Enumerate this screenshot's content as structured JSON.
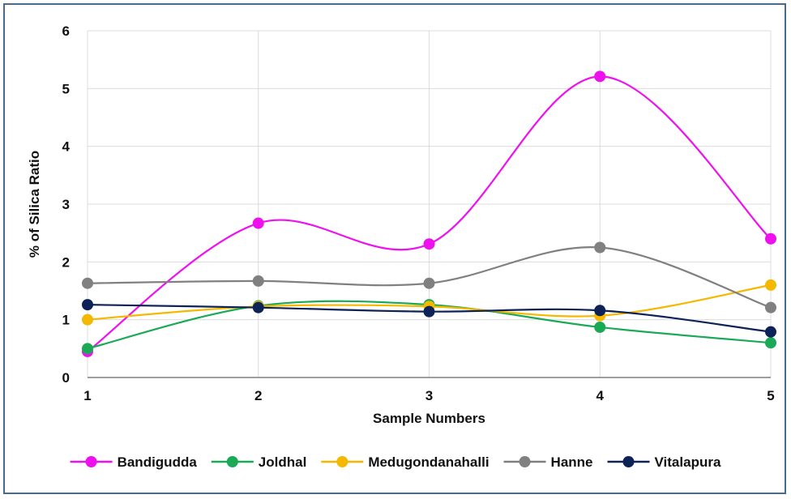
{
  "chart_data": {
    "type": "line",
    "title": "",
    "xlabel": "Sample Numbers",
    "ylabel": "% of Silica Ratio",
    "x": [
      1,
      2,
      3,
      4,
      5
    ],
    "xlim": [
      1,
      5
    ],
    "ylim": [
      0,
      6
    ],
    "yticks": [
      0,
      1,
      2,
      3,
      4,
      5,
      6
    ],
    "xticks": [
      1,
      2,
      3,
      4,
      5
    ],
    "grid": true,
    "smoothed": true,
    "legend_position": "bottom",
    "series": [
      {
        "name": "Bandigudda",
        "color": "#ee11ee",
        "values": [
          0.45,
          2.67,
          2.31,
          5.21,
          2.4
        ]
      },
      {
        "name": "Joldhal",
        "color": "#1aaa55",
        "values": [
          0.5,
          1.24,
          1.26,
          0.87,
          0.6
        ]
      },
      {
        "name": "Medugondanahalli",
        "color": "#f5b800",
        "values": [
          1.0,
          1.23,
          1.23,
          1.07,
          1.6
        ]
      },
      {
        "name": "Hanne",
        "color": "#808080",
        "values": [
          1.63,
          1.67,
          1.63,
          2.25,
          1.21
        ]
      },
      {
        "name": "Vitalapura",
        "color": "#0d2257",
        "values": [
          1.26,
          1.21,
          1.14,
          1.16,
          0.79
        ]
      }
    ]
  }
}
